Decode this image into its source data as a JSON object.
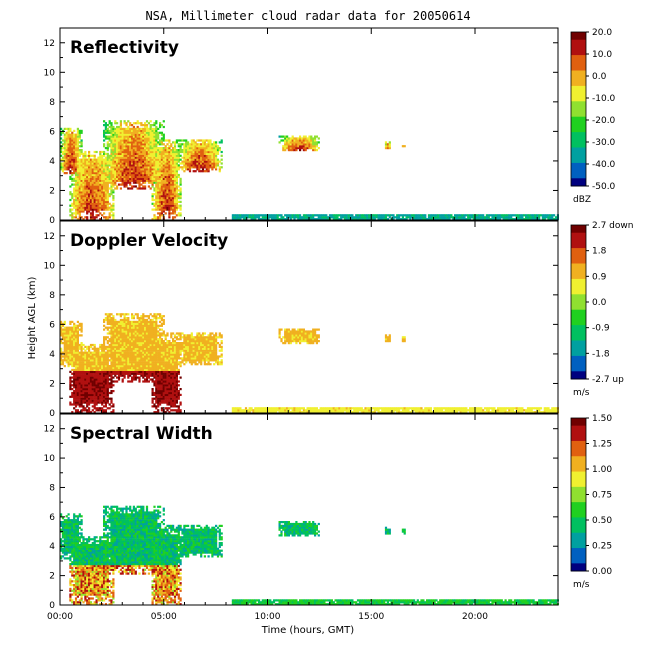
{
  "title": "NSA, Millimeter cloud radar data for 20050614",
  "chart_data": {
    "type": "heatmap",
    "xlabel": "Time (hours, GMT)",
    "ylabel": "Height AGL (km)",
    "xlim": [
      0,
      24
    ],
    "ylim": [
      0,
      13
    ],
    "x_ticks": [
      {
        "value": 0,
        "label": "00:00"
      },
      {
        "value": 5,
        "label": "05:00"
      },
      {
        "value": 10,
        "label": "10:00"
      },
      {
        "value": 15,
        "label": "15:00"
      },
      {
        "value": 20,
        "label": "20:00"
      }
    ],
    "y_ticks": [
      {
        "value": 0,
        "label": "0"
      },
      {
        "value": 2,
        "label": "2"
      },
      {
        "value": 4,
        "label": "4"
      },
      {
        "value": 6,
        "label": "6"
      },
      {
        "value": 8,
        "label": "8"
      },
      {
        "value": 10,
        "label": "10"
      },
      {
        "value": 12,
        "label": "12"
      }
    ],
    "panels": [
      {
        "name": "Reflectivity",
        "unit": "dBZ",
        "colorbar": {
          "range": [
            -50,
            20
          ],
          "ticks": [
            "20.0",
            "10.0",
            "0.0",
            "-10.0",
            "-20.0",
            "-30.0",
            "-40.0",
            "-50.0"
          ]
        }
      },
      {
        "name": "Doppler Velocity",
        "unit": "m/s",
        "colorbar": {
          "range": [
            -2.7,
            2.7
          ],
          "ticks": [
            "2.7 down",
            "1.8",
            "0.9",
            "0.0",
            "-0.9",
            "-1.8",
            "-2.7 up"
          ]
        }
      },
      {
        "name": "Spectral Width",
        "unit": "m/s",
        "colorbar": {
          "range": [
            0,
            1.5
          ],
          "ticks": [
            "1.50",
            "1.25",
            "1.00",
            "0.75",
            "0.50",
            "0.25",
            "0.00"
          ]
        }
      }
    ],
    "colormap": [
      "#00007f",
      "#0060c0",
      "#00a0a0",
      "#00c060",
      "#20d020",
      "#90e030",
      "#f0f030",
      "#f0b020",
      "#e06010",
      "#b01010",
      "#700000"
    ]
  }
}
